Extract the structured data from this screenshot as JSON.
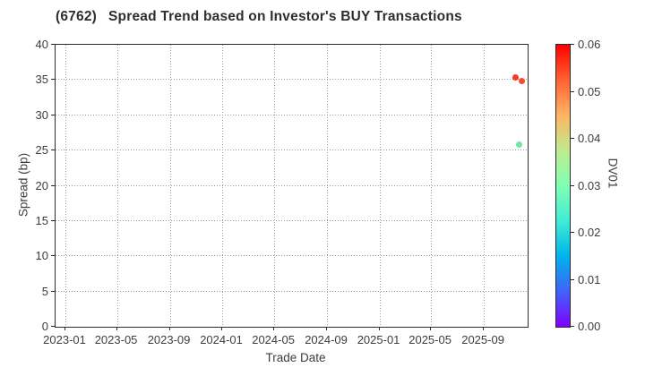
{
  "figure": {
    "title_ticker": "(6762)",
    "title_text": "Spread Trend based on Investor's BUY Transactions"
  },
  "chart_data": {
    "type": "scatter",
    "title": "(6762)   Spread Trend based on Investor's BUY Transactions",
    "xlabel": "Trade Date",
    "ylabel": "Spread (bp)",
    "grid": true,
    "xlim": [
      "2022-12-09",
      "2025-12-12"
    ],
    "ylim": [
      0,
      40
    ],
    "x_tick_labels": [
      "2023-01",
      "2023-05",
      "2023-09",
      "2024-01",
      "2024-05",
      "2024-09",
      "2025-01",
      "2025-05",
      "2025-09"
    ],
    "y_ticks": [
      0,
      5,
      10,
      15,
      20,
      25,
      30,
      35,
      40
    ],
    "points": [
      {
        "date": "2025-11-15",
        "spread": 35.2,
        "dv01": 0.058,
        "color": "#f93822"
      },
      {
        "date": "2025-12-01",
        "spread": 34.7,
        "dv01": 0.056,
        "color": "#f54a30"
      },
      {
        "date": "2025-11-24",
        "spread": 25.7,
        "dv01": 0.028,
        "color": "#70e8a4"
      }
    ],
    "colorbar": {
      "label": "DV01",
      "min": 0.0,
      "max": 0.06,
      "tick_labels": [
        "0.00",
        "0.01",
        "0.02",
        "0.03",
        "0.04",
        "0.05",
        "0.06"
      ],
      "colormap": "rainbow",
      "gradient_stops": [
        "#8000ff",
        "#4062fa",
        "#00b4ec",
        "#40ecd4",
        "#80ffb4",
        "#bfec8e",
        "#ffb462",
        "#ff6232",
        "#ff0000"
      ]
    }
  }
}
